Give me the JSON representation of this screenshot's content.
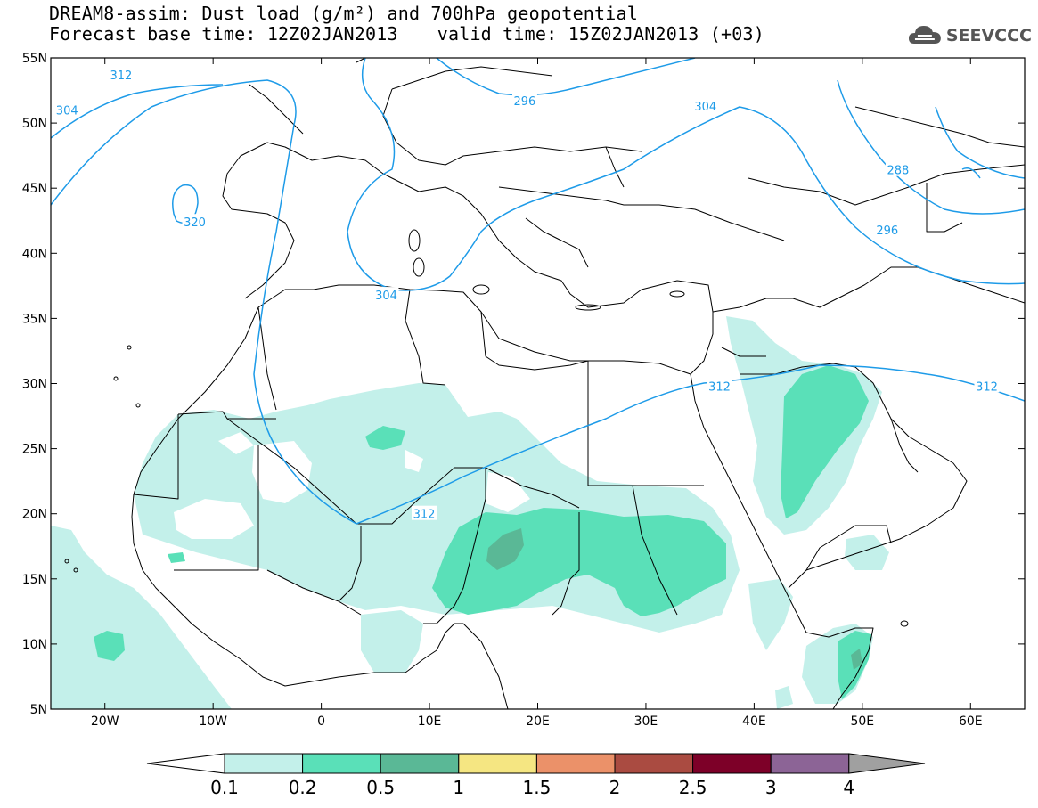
{
  "title_line1": "DREAM8-assim: Dust load (g/m²) and 700hPa geopotential",
  "title_line2a": "Forecast base time: 12Z02JAN2013",
  "title_line2b": "valid time: 15Z02JAN2013 (+03)",
  "logo_text": "SEEVCCC",
  "map": {
    "lon_range": [
      -25,
      65
    ],
    "lat_range": [
      5,
      55
    ],
    "lat_ticks": [
      "55N",
      "50N",
      "45N",
      "40N",
      "35N",
      "30N",
      "25N",
      "20N",
      "15N",
      "10N",
      "5N"
    ],
    "lon_ticks": [
      "20W",
      "10W",
      "0",
      "10E",
      "20E",
      "30E",
      "40E",
      "50E",
      "60E"
    ],
    "contour_color": "#1e9be8",
    "contour_labels": [
      {
        "text": "312",
        "lon": -18.5,
        "lat": 53.7
      },
      {
        "text": "304",
        "lon": -23.5,
        "lat": 51.0
      },
      {
        "text": "320",
        "lon": -11.7,
        "lat": 42.4
      },
      {
        "text": "296",
        "lon": 18.8,
        "lat": 51.7
      },
      {
        "text": "304",
        "lon": 35.5,
        "lat": 51.3
      },
      {
        "text": "288",
        "lon": 53.3,
        "lat": 46.4
      },
      {
        "text": "296",
        "lon": 52.3,
        "lat": 41.8
      },
      {
        "text": "304",
        "lon": 6.0,
        "lat": 36.8
      },
      {
        "text": "312",
        "lon": 36.8,
        "lat": 29.8
      },
      {
        "text": "312",
        "lon": 61.5,
        "lat": 29.8
      },
      {
        "text": "312",
        "lon": 9.5,
        "lat": 20.0
      }
    ]
  },
  "colorbar": {
    "labels": [
      "0.1",
      "0.2",
      "0.5",
      "1",
      "1.5",
      "2",
      "2.5",
      "3",
      "4"
    ],
    "colors": [
      "#c3f0ea",
      "#5ae0b8",
      "#5ab896",
      "#f5e682",
      "#eb9169",
      "#aa4b41",
      "#7d0028",
      "#8c6496"
    ],
    "under_color": "#ffffff",
    "over_color": "#a0a0a0"
  }
}
